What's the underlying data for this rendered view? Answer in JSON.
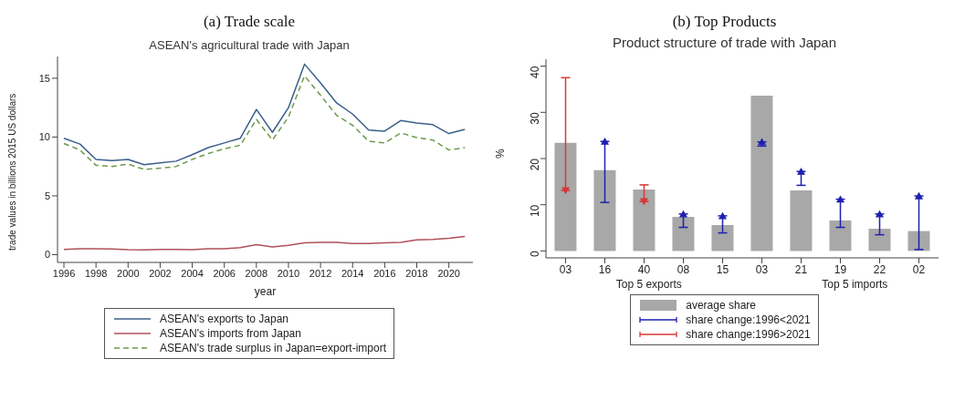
{
  "chart_data": [
    {
      "type": "line",
      "title": "(a) Trade scale",
      "subtitle": "ASEAN's agricultural trade with Japan",
      "xlabel": "year",
      "ylabel": "trade values in billions 2015 US dollars",
      "x": [
        1996,
        1997,
        1998,
        1999,
        2000,
        2001,
        2002,
        2003,
        2004,
        2005,
        2006,
        2007,
        2008,
        2009,
        2010,
        2011,
        2012,
        2013,
        2014,
        2015,
        2016,
        2017,
        2018,
        2019,
        2020,
        2021
      ],
      "series": [
        {
          "name": "ASEAN's exports to Japan",
          "color": "#3a5f8a",
          "line_style": "solid",
          "values": [
            9.9,
            9.4,
            8.1,
            8.0,
            8.1,
            7.65,
            7.8,
            7.95,
            8.5,
            9.1,
            9.5,
            9.9,
            12.35,
            10.4,
            12.5,
            16.2,
            14.6,
            12.9,
            11.95,
            10.6,
            10.5,
            11.4,
            11.2,
            11.05,
            10.3,
            10.65
          ]
        },
        {
          "name": "ASEAN's imports from Japan",
          "color": "#b0505a",
          "line_style": "solid",
          "values": [
            0.45,
            0.5,
            0.5,
            0.48,
            0.42,
            0.4,
            0.45,
            0.45,
            0.42,
            0.5,
            0.5,
            0.6,
            0.85,
            0.65,
            0.8,
            1.0,
            1.05,
            1.05,
            0.95,
            0.95,
            1.0,
            1.05,
            1.25,
            1.3,
            1.4,
            1.55
          ]
        },
        {
          "name": "ASEAN's trade surplus in Japan=export-import",
          "color": "#6e9a4a",
          "line_style": "dashed",
          "values": [
            9.45,
            8.9,
            7.6,
            7.5,
            7.7,
            7.25,
            7.35,
            7.5,
            8.1,
            8.6,
            9.0,
            9.3,
            11.5,
            9.75,
            11.7,
            15.2,
            13.55,
            11.85,
            11.0,
            9.65,
            9.5,
            10.35,
            9.95,
            9.75,
            8.9,
            9.1
          ]
        }
      ],
      "xlim": [
        1995.6,
        2021.5
      ],
      "xticks": [
        1996,
        1998,
        2000,
        2002,
        2004,
        2006,
        2008,
        2010,
        2012,
        2014,
        2016,
        2018,
        2020
      ],
      "ylim": [
        -0.66,
        16.85
      ],
      "yticks": [
        0,
        5,
        10,
        15
      ],
      "grid": false,
      "marker": "none",
      "legend": "bottom"
    },
    {
      "type": "bar",
      "title": "(b) Top Products",
      "subtitle": "Product structure of trade with Japan",
      "ylabel": "%",
      "categories": [
        "03",
        "16",
        "40",
        "08",
        "15",
        "03",
        "21",
        "19",
        "22",
        "02"
      ],
      "series": [
        {
          "name": "average share",
          "type": "bar",
          "color": "#a8a8a8",
          "values": [
            23.4,
            17.5,
            13.3,
            7.4,
            5.6,
            33.6,
            13.1,
            6.6,
            4.8,
            4.3
          ]
        },
        {
          "name": "share change:1996<2021",
          "type": "scatter",
          "marker": "triangle",
          "color": "#1f1fb0",
          "values": [
            null,
            23.7,
            null,
            8.0,
            7.6,
            23.6,
            17.2,
            11.2,
            8.0,
            11.9
          ],
          "errors": [
            null,
            [
              10.5,
              23.7
            ],
            null,
            [
              5.1,
              8.0
            ],
            [
              3.9,
              7.6
            ],
            [
              22.7,
              23.6
            ],
            [
              14.2,
              17.2
            ],
            [
              5.1,
              11.2
            ],
            [
              3.5,
              8.0
            ],
            [
              0.3,
              11.9
            ]
          ]
        },
        {
          "name": "share change:1996>2021",
          "type": "scatter",
          "marker": "triangle",
          "color": "#d63838",
          "values": [
            13.1,
            null,
            10.7,
            null,
            null,
            null,
            null,
            null,
            null,
            null
          ],
          "errors": [
            [
              13.1,
              37.5
            ],
            null,
            [
              10.7,
              14.3
            ],
            null,
            null,
            null,
            null,
            null,
            null,
            null
          ]
        }
      ],
      "ylim": [
        -1.5,
        41.5
      ],
      "yticks": [
        0,
        10,
        20,
        30,
        40
      ],
      "grid": false,
      "legend": "bottom",
      "annotations": [
        "Top 5 exports",
        "Top 5 imports"
      ]
    }
  ]
}
